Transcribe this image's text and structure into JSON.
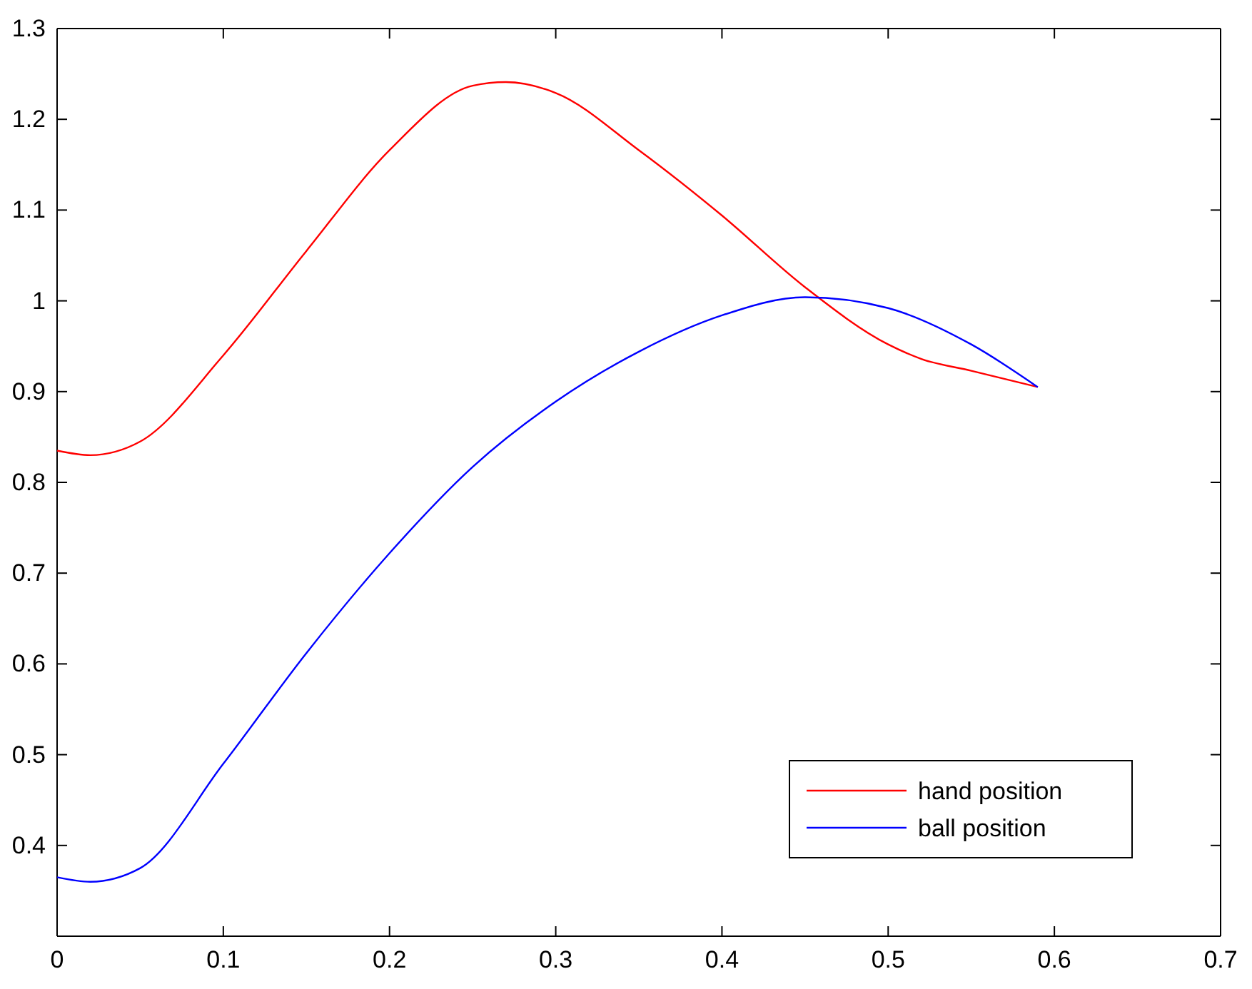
{
  "chart_data": {
    "type": "line",
    "legend": "bottom right",
    "grid": false,
    "line_style": "solid",
    "marker": "none",
    "xlim": [
      0,
      0.7
    ],
    "xticks": [
      0,
      0.1,
      0.2,
      0.3,
      0.4,
      0.5,
      0.6,
      0.7
    ],
    "ylim": [
      0.3,
      1.3
    ],
    "yticks": [
      0.4,
      0.5,
      0.6,
      0.7,
      0.8,
      0.9,
      1,
      1.1,
      1.2,
      1.3
    ],
    "series": [
      {
        "name": "hand position",
        "color": "#ff0000",
        "x": [
          0,
          0.02,
          0.05,
          0.1,
          0.15,
          0.2,
          0.25,
          0.27,
          0.3,
          0.35,
          0.4,
          0.45,
          0.5,
          0.52,
          0.55,
          0.59
        ],
        "values": [
          0.835,
          0.83,
          0.845,
          0.94,
          1.055,
          1.166,
          1.237,
          1.241,
          1.229,
          1.166,
          1.094,
          1.015,
          0.952,
          0.936,
          0.923,
          0.905
        ]
      },
      {
        "name": "ball position",
        "color": "#0000ff",
        "x": [
          0,
          0.02,
          0.05,
          0.1,
          0.15,
          0.2,
          0.25,
          0.3,
          0.35,
          0.4,
          0.45,
          0.5,
          0.55,
          0.59
        ],
        "values": [
          0.365,
          0.36,
          0.375,
          0.49,
          0.612,
          0.722,
          0.817,
          0.889,
          0.944,
          0.984,
          1.004,
          0.992,
          0.952,
          0.905
        ]
      }
    ]
  }
}
